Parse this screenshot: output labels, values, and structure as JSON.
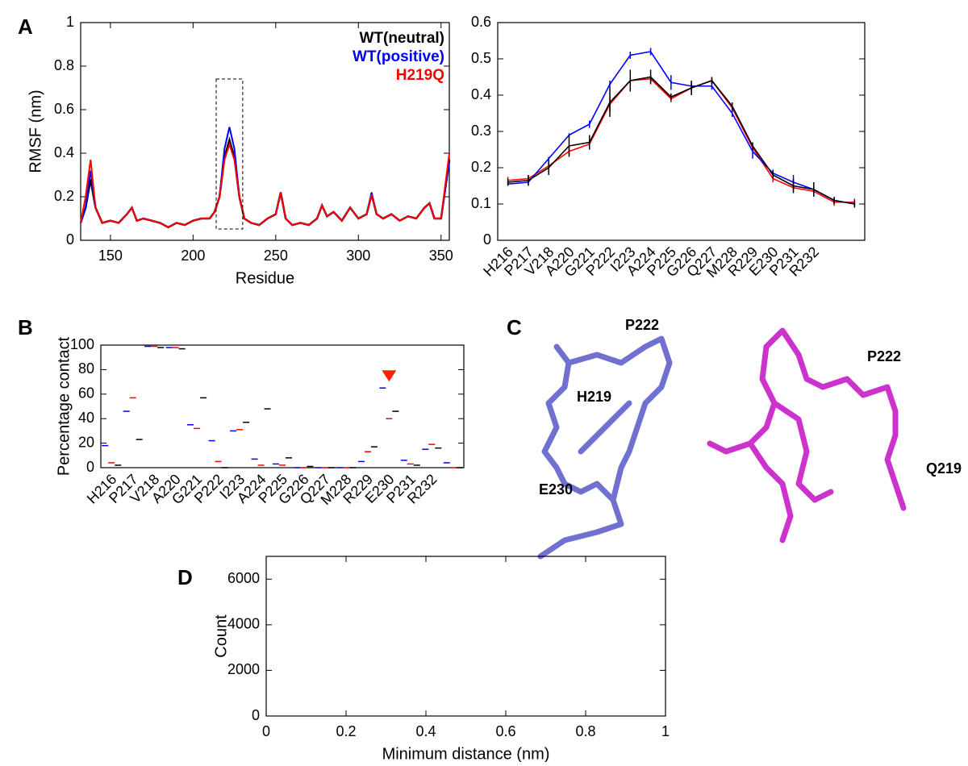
{
  "chart_data": [
    {
      "type": "line",
      "panel": "A",
      "xlabel": "Residue",
      "ylabel": "RMSF (nm)",
      "xlim": [
        132,
        355
      ],
      "xticks": [
        150,
        200,
        250,
        300,
        350
      ],
      "ylim": [
        0,
        1
      ],
      "yticks": [
        0,
        0.2,
        0.4,
        0.6,
        0.8,
        1
      ],
      "x": [
        132,
        135,
        138,
        141,
        145,
        150,
        155,
        160,
        163,
        166,
        170,
        175,
        180,
        185,
        190,
        195,
        200,
        205,
        210,
        213,
        216,
        219,
        222,
        225,
        228,
        231,
        235,
        240,
        245,
        250,
        253,
        256,
        260,
        265,
        270,
        275,
        278,
        281,
        285,
        290,
        295,
        300,
        305,
        308,
        311,
        315,
        320,
        325,
        330,
        335,
        340,
        343,
        346,
        350,
        355
      ],
      "series": [
        {
          "name": "WT(neutral)",
          "color": "#000000",
          "values": [
            0.08,
            0.15,
            0.28,
            0.15,
            0.08,
            0.09,
            0.08,
            0.12,
            0.15,
            0.09,
            0.1,
            0.09,
            0.08,
            0.06,
            0.08,
            0.07,
            0.09,
            0.1,
            0.1,
            0.13,
            0.2,
            0.38,
            0.46,
            0.38,
            0.2,
            0.1,
            0.08,
            0.07,
            0.1,
            0.12,
            0.22,
            0.1,
            0.07,
            0.08,
            0.07,
            0.1,
            0.16,
            0.11,
            0.13,
            0.09,
            0.15,
            0.1,
            0.12,
            0.21,
            0.12,
            0.1,
            0.12,
            0.09,
            0.11,
            0.1,
            0.15,
            0.17,
            0.1,
            0.1,
            0.37
          ]
        },
        {
          "name": "WT(positive)",
          "color": "#0000ff",
          "values": [
            0.08,
            0.15,
            0.32,
            0.15,
            0.08,
            0.09,
            0.08,
            0.12,
            0.15,
            0.09,
            0.1,
            0.09,
            0.08,
            0.06,
            0.08,
            0.07,
            0.09,
            0.1,
            0.1,
            0.13,
            0.2,
            0.42,
            0.52,
            0.42,
            0.2,
            0.1,
            0.08,
            0.07,
            0.1,
            0.12,
            0.22,
            0.1,
            0.07,
            0.08,
            0.07,
            0.1,
            0.16,
            0.11,
            0.13,
            0.09,
            0.15,
            0.1,
            0.12,
            0.22,
            0.12,
            0.1,
            0.12,
            0.09,
            0.11,
            0.1,
            0.15,
            0.17,
            0.1,
            0.1,
            0.36
          ]
        },
        {
          "name": "H219Q",
          "color": "#ff0000",
          "values": [
            0.08,
            0.2,
            0.37,
            0.15,
            0.08,
            0.09,
            0.08,
            0.12,
            0.15,
            0.09,
            0.1,
            0.09,
            0.08,
            0.06,
            0.08,
            0.07,
            0.09,
            0.1,
            0.1,
            0.13,
            0.2,
            0.37,
            0.44,
            0.37,
            0.2,
            0.1,
            0.08,
            0.07,
            0.1,
            0.12,
            0.22,
            0.1,
            0.07,
            0.08,
            0.07,
            0.1,
            0.16,
            0.11,
            0.13,
            0.09,
            0.15,
            0.1,
            0.12,
            0.21,
            0.12,
            0.1,
            0.12,
            0.09,
            0.11,
            0.1,
            0.15,
            0.17,
            0.1,
            0.1,
            0.4
          ]
        }
      ]
    },
    {
      "type": "errorline",
      "categories": [
        "H216",
        "P217",
        "V218",
        "A220",
        "G221",
        "P222",
        "I223",
        "A224",
        "P225",
        "G226",
        "Q227",
        "M228",
        "R229",
        "E230",
        "P231",
        "R232",
        null,
        null
      ],
      "ylim": [
        0,
        0.6
      ],
      "yticks": [
        0,
        0.1,
        0.2,
        0.3,
        0.4,
        0.5,
        0.6
      ],
      "series": [
        {
          "color": "#ff0000",
          "values": [
            0.165,
            0.17,
            0.205,
            0.245,
            0.265,
            0.375,
            0.44,
            0.445,
            0.39,
            0.42,
            0.44,
            0.365,
            0.255,
            0.17,
            0.145,
            0.135,
            0.105,
            0.105
          ],
          "errors": [
            0.01,
            0.01,
            0.01,
            0.01,
            0.01,
            0.02,
            0.01,
            0.01,
            0.01,
            0.01,
            0.01,
            0.01,
            0.01,
            0.01,
            0.01,
            0.01,
            0.01,
            0.01
          ]
        },
        {
          "color": "#0000ff",
          "values": [
            0.155,
            0.16,
            0.225,
            0.29,
            0.32,
            0.43,
            0.51,
            0.52,
            0.435,
            0.425,
            0.425,
            0.35,
            0.245,
            0.185,
            0.16,
            0.14,
            0.11,
            0.1
          ],
          "errors": [
            0.005,
            0.005,
            0.005,
            0.005,
            0.01,
            0.01,
            0.01,
            0.01,
            0.02,
            0.01,
            0.01,
            0.01,
            0.02,
            0.01,
            0.02,
            0.01,
            0.005,
            0.005
          ]
        },
        {
          "color": "#000000",
          "values": [
            0.16,
            0.165,
            0.2,
            0.26,
            0.27,
            0.38,
            0.44,
            0.45,
            0.395,
            0.42,
            0.44,
            0.37,
            0.26,
            0.18,
            0.15,
            0.14,
            0.11,
            0.1
          ],
          "errors": [
            0.01,
            0.015,
            0.02,
            0.03,
            0.02,
            0.04,
            0.03,
            0.02,
            0.01,
            0.02,
            0.01,
            0.01,
            0.01,
            0.01,
            0.02,
            0.02,
            0.01,
            0.01
          ]
        }
      ]
    },
    {
      "type": "marker",
      "panel": "B",
      "ylabel": "Percentage contact",
      "categories": [
        "H216",
        "P217",
        "V218",
        "A220",
        "G221",
        "P222",
        "I223",
        "A224",
        "P225",
        "G226",
        "Q227",
        "M228",
        "R229",
        "E230",
        "P231",
        "R232",
        null
      ],
      "ylim": [
        0,
        100
      ],
      "yticks": [
        0,
        20,
        40,
        60,
        80,
        100
      ],
      "series": [
        {
          "color": "#0000ff",
          "values": [
            18,
            46,
            99,
            98,
            35,
            22,
            30,
            7,
            3,
            0,
            0,
            0,
            5,
            65,
            6,
            15,
            4
          ]
        },
        {
          "color": "#ff0000",
          "values": [
            4,
            57,
            99,
            98,
            32,
            5,
            31,
            2,
            2,
            0,
            0,
            0,
            13,
            40,
            3,
            19,
            0
          ]
        },
        {
          "color": "#000000",
          "values": [
            2,
            23,
            98,
            97,
            57,
            0,
            37,
            48,
            8,
            1,
            0,
            0,
            17,
            46,
            2,
            16,
            0
          ]
        }
      ]
    },
    {
      "type": "histogram",
      "panel": "D",
      "xlabel": "Minimum distance (nm)",
      "ylabel": "Count",
      "xlim": [
        0,
        1
      ],
      "xticks": [
        0,
        0.2,
        0.4,
        0.6,
        0.8,
        1
      ],
      "ylim": [
        0,
        7000
      ],
      "yticks": [
        0,
        2000,
        4000,
        6000
      ]
    }
  ],
  "structure": {
    "panel": "C",
    "labels": [
      "P222",
      "H219",
      "E230",
      "P222",
      "Q219"
    ]
  }
}
